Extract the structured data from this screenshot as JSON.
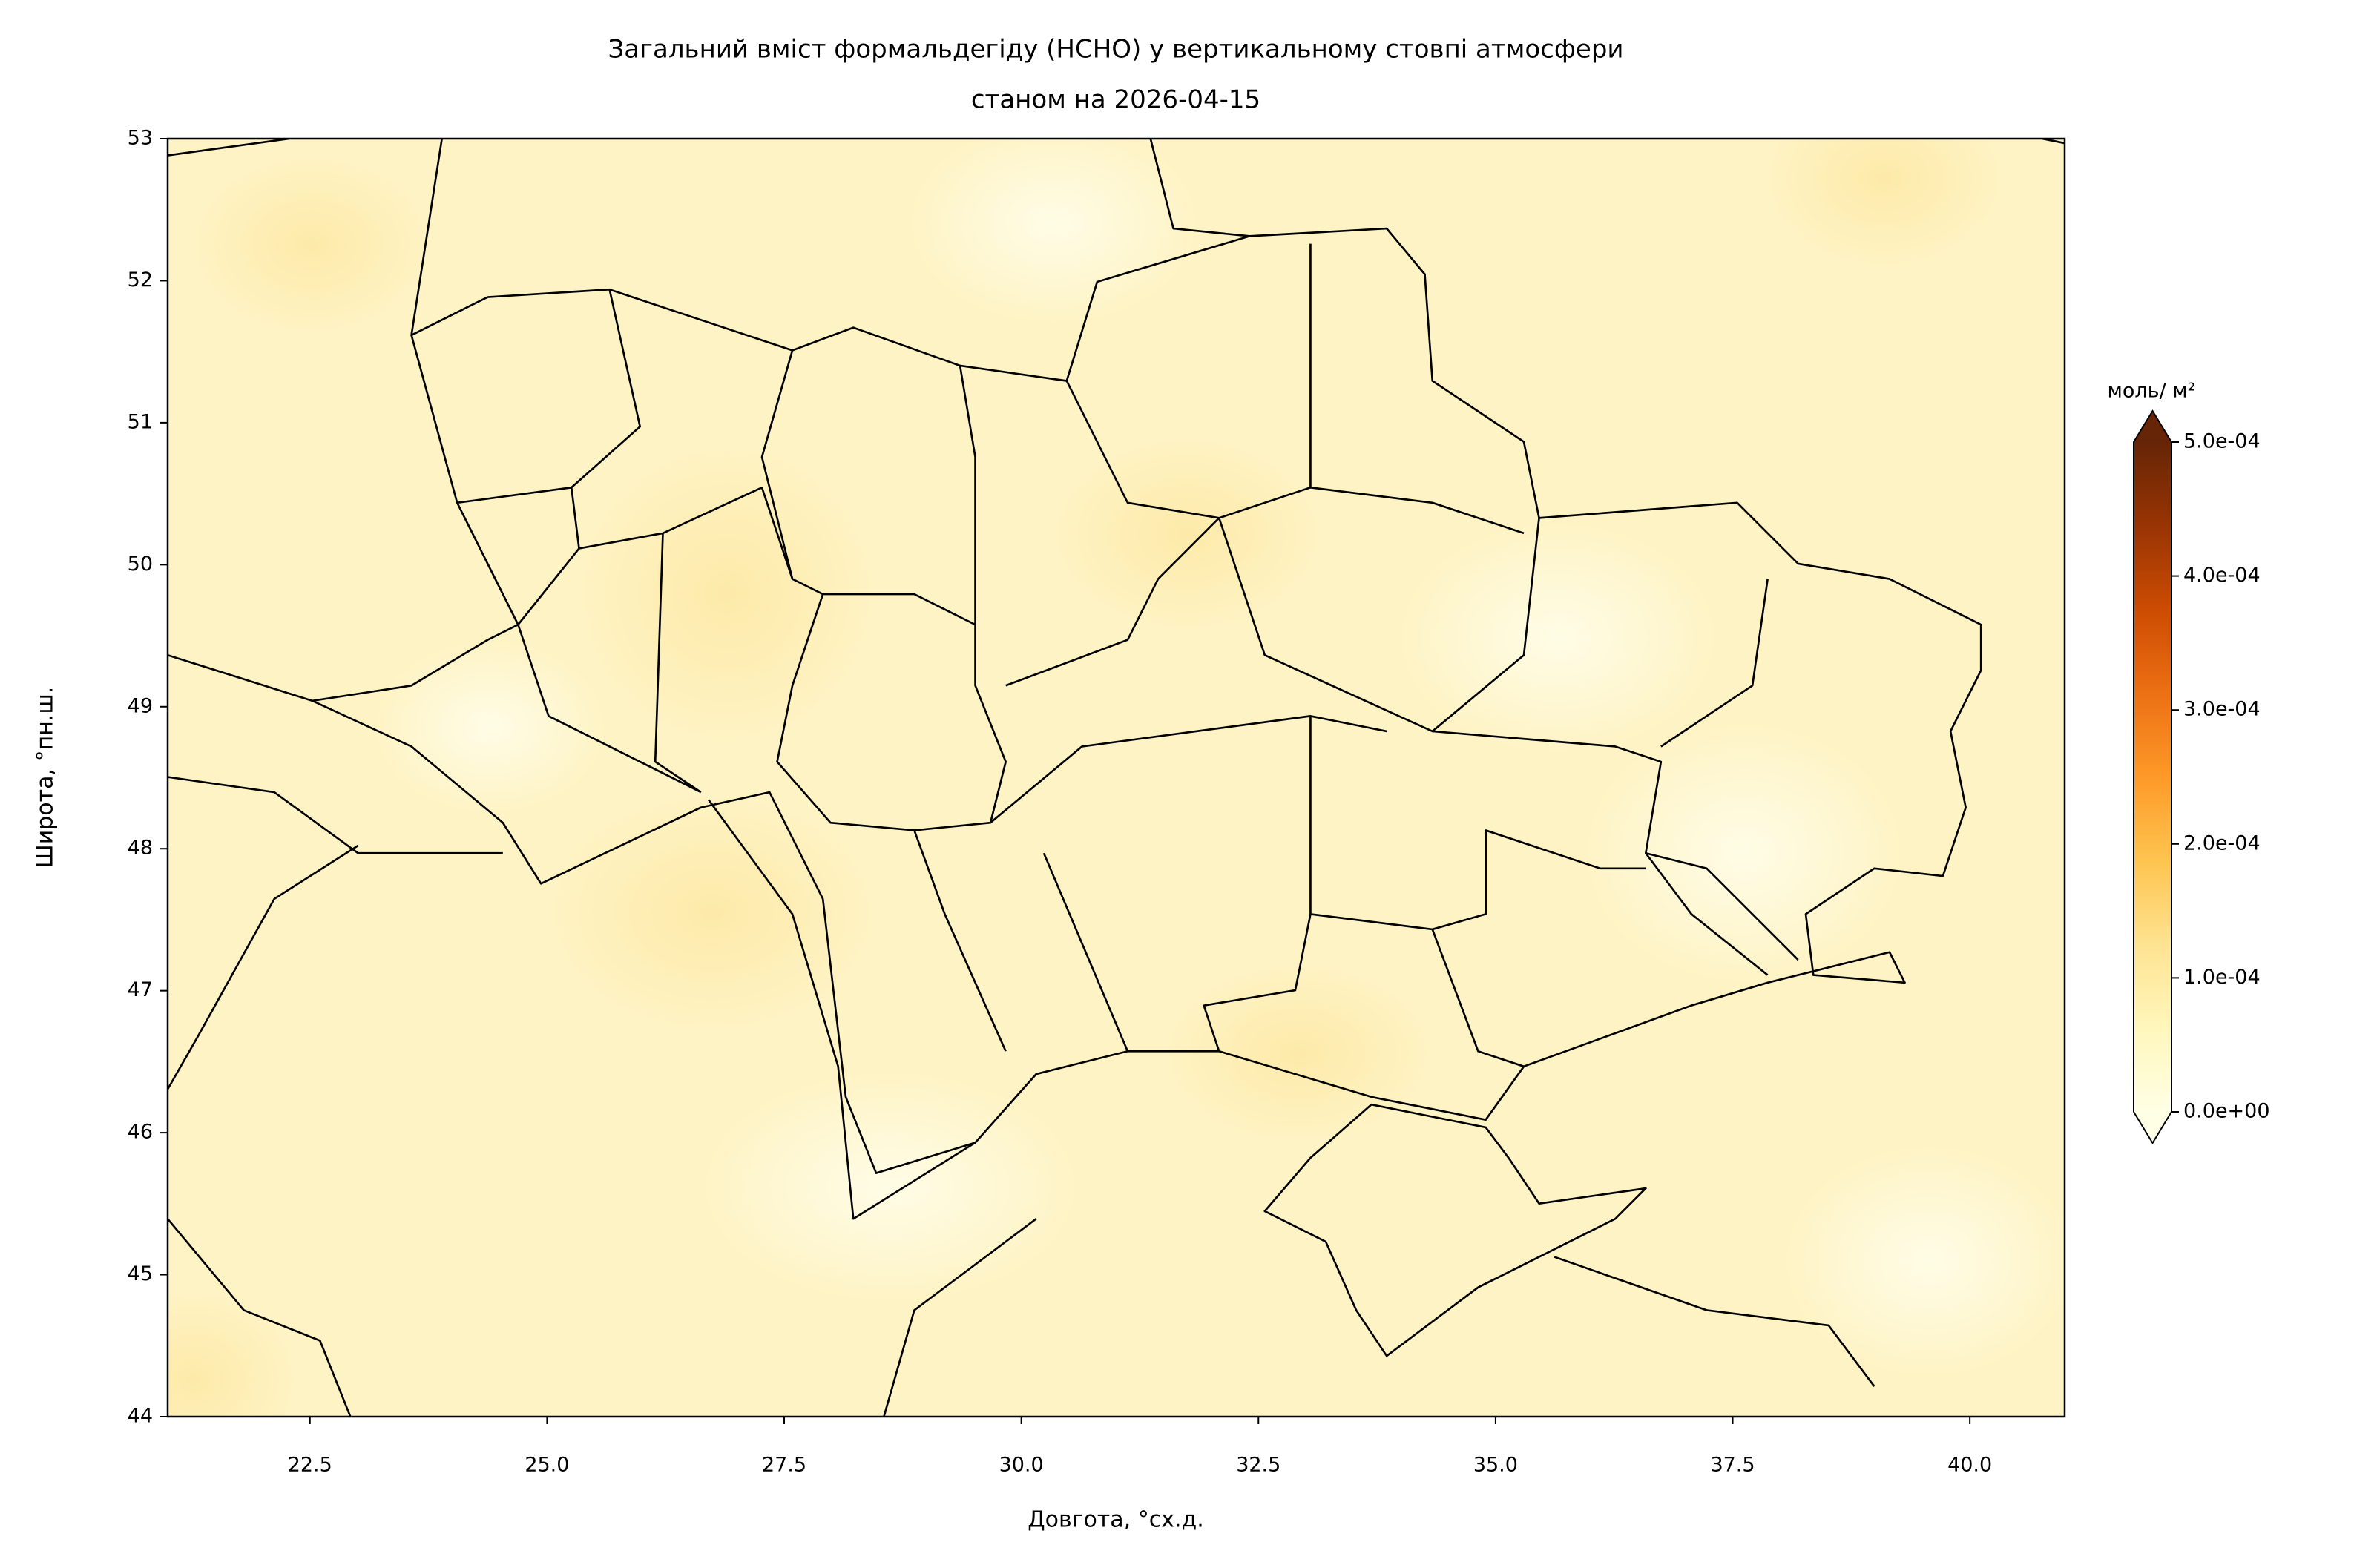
{
  "chart_data": {
    "type": "map",
    "title": "Загальний вміст формальдегіду (HCHO) у вертикальному стовпі атмосфери",
    "subtitle": "станом на 2026-04-15",
    "x_label": "Довгота, °сх.д.",
    "y_label": "Широта, °пн.ш.",
    "xlim": [
      21,
      41
    ],
    "ylim": [
      44,
      53
    ],
    "xticks": [
      22.5,
      {
        "value": 25,
        "label": "25.0"
      },
      27.5,
      {
        "value": 30,
        "label": "30.0"
      },
      32.5,
      {
        "value": 35,
        "label": "35.0"
      },
      37.5,
      {
        "value": 40,
        "label": "40.0"
      }
    ],
    "yticks": [
      44,
      45,
      46,
      47,
      48,
      49,
      50,
      51,
      52,
      53
    ],
    "colorbar": {
      "label": "моль/ м²",
      "lim": [
        0,
        0.0005
      ],
      "ticks": [
        {
          "value": 0,
          "label": "0.0e+00"
        },
        {
          "value": 0.0001,
          "label": "1.0e-04"
        },
        {
          "value": 0.0002,
          "label": "2.0e-04"
        },
        {
          "value": 0.0003,
          "label": "3.0e-04"
        },
        {
          "value": 0.0004,
          "label": "4.0e-04"
        },
        {
          "value": 0.0005,
          "label": "5.0e-04"
        }
      ],
      "colors": [
        "#ffffe5",
        "#fff7bc",
        "#fee391",
        "#fec44f",
        "#fe9929",
        "#ec7014",
        "#cc4c02",
        "#993404",
        "#662506"
      ],
      "extend": "both"
    }
  }
}
